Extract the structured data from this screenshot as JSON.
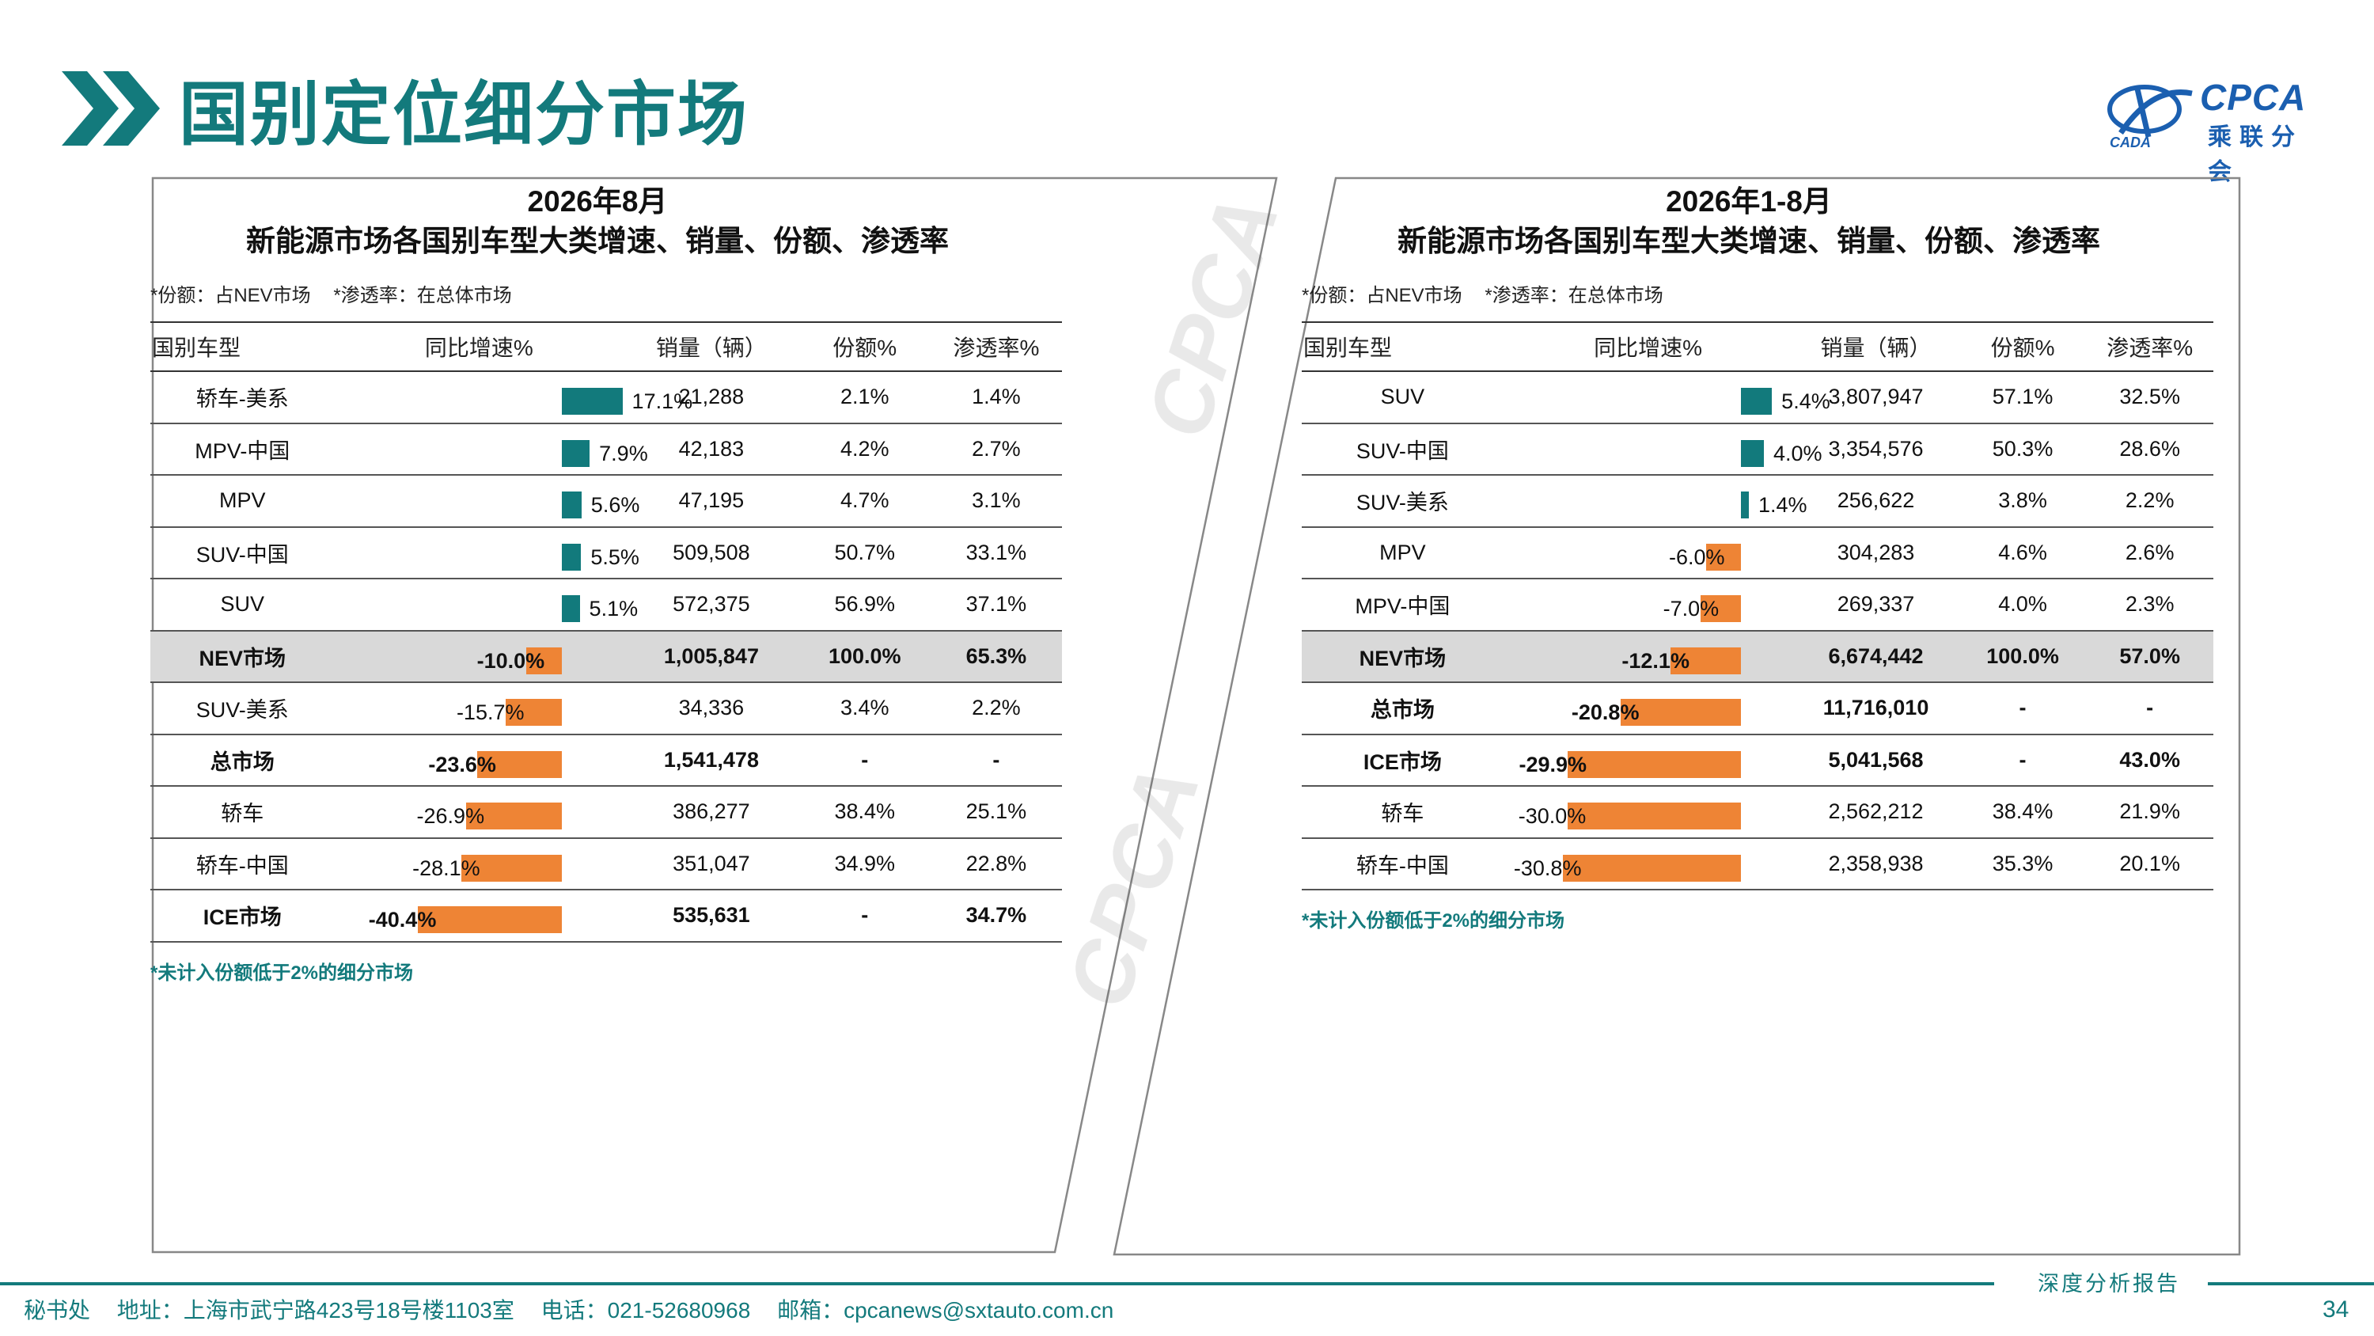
{
  "page": {
    "title": "国别定位细分市场",
    "page_number": "34",
    "report_label": "深度分析报告"
  },
  "logo": {
    "brand": "CPCA",
    "subtitle": "乘联分会",
    "mark_text": "CADA"
  },
  "footer": {
    "secretariat": "秘书处",
    "address": "地址：上海市武宁路423号18号楼1103室",
    "phone": "电话：021-52680968",
    "email": "邮箱：cpcanews@sxtauto.com.cn"
  },
  "columns": {
    "name": "国别车型",
    "growth": "同比增速%",
    "sales": "销量（辆）",
    "share": "份额%",
    "penetration": "渗透率%"
  },
  "colors": {
    "teal": "#137a7c",
    "positive_bar": "#127a7c",
    "negative_bar": "#ee8435",
    "highlight_row": "#d9d9d9"
  },
  "chart_data": [
    {
      "type": "table",
      "title_line1": "2026年8月",
      "title_line2": "新能源市场各国别车型大类增速、销量、份额、渗透率",
      "note_share": "*份额：占NEV市场",
      "note_penetration": "*渗透率：在总体市场",
      "footnote": "*未计入份额低于2%的细分市场",
      "rows": [
        {
          "name": "轿车-美系",
          "growth": 17.1,
          "growth_label": "17.1%",
          "sales": "21,288",
          "share": "2.1%",
          "penetration": "1.4%",
          "style": "normal"
        },
        {
          "name": "MPV-中国",
          "growth": 7.9,
          "growth_label": "7.9%",
          "sales": "42,183",
          "share": "4.2%",
          "penetration": "2.7%",
          "style": "normal"
        },
        {
          "name": "MPV",
          "growth": 5.6,
          "growth_label": "5.6%",
          "sales": "47,195",
          "share": "4.7%",
          "penetration": "3.1%",
          "style": "normal"
        },
        {
          "name": "SUV-中国",
          "growth": 5.5,
          "growth_label": "5.5%",
          "sales": "509,508",
          "share": "50.7%",
          "penetration": "33.1%",
          "style": "normal"
        },
        {
          "name": "SUV",
          "growth": 5.1,
          "growth_label": "5.1%",
          "sales": "572,375",
          "share": "56.9%",
          "penetration": "37.1%",
          "style": "normal"
        },
        {
          "name": "NEV市场",
          "growth": -10.0,
          "growth_label": "-10.0%",
          "sales": "1,005,847",
          "share": "100.0%",
          "penetration": "65.3%",
          "style": "highlight"
        },
        {
          "name": "SUV-美系",
          "growth": -15.7,
          "growth_label": "-15.7%",
          "sales": "34,336",
          "share": "3.4%",
          "penetration": "2.2%",
          "style": "normal"
        },
        {
          "name": "总市场",
          "growth": -23.6,
          "growth_label": "-23.6%",
          "sales": "1,541,478",
          "share": "-",
          "penetration": "-",
          "style": "bold"
        },
        {
          "name": "轿车",
          "growth": -26.9,
          "growth_label": "-26.9%",
          "sales": "386,277",
          "share": "38.4%",
          "penetration": "25.1%",
          "style": "normal"
        },
        {
          "name": "轿车-中国",
          "growth": -28.1,
          "growth_label": "-28.1%",
          "sales": "351,047",
          "share": "34.9%",
          "penetration": "22.8%",
          "style": "normal"
        },
        {
          "name": "ICE市场",
          "growth": -40.4,
          "growth_label": "-40.4%",
          "sales": "535,631",
          "share": "-",
          "penetration": "34.7%",
          "style": "bold"
        }
      ]
    },
    {
      "type": "table",
      "title_line1": "2026年1-8月",
      "title_line2": "新能源市场各国别车型大类增速、销量、份额、渗透率",
      "note_share": "*份额：占NEV市场",
      "note_penetration": "*渗透率：在总体市场",
      "footnote": "*未计入份额低于2%的细分市场",
      "rows": [
        {
          "name": "SUV",
          "growth": 5.4,
          "growth_label": "5.4%",
          "sales": "3,807,947",
          "share": "57.1%",
          "penetration": "32.5%",
          "style": "normal"
        },
        {
          "name": "SUV-中国",
          "growth": 4.0,
          "growth_label": "4.0%",
          "sales": "3,354,576",
          "share": "50.3%",
          "penetration": "28.6%",
          "style": "normal"
        },
        {
          "name": "SUV-美系",
          "growth": 1.4,
          "growth_label": "1.4%",
          "sales": "256,622",
          "share": "3.8%",
          "penetration": "2.2%",
          "style": "normal"
        },
        {
          "name": "MPV",
          "growth": -6.0,
          "growth_label": "-6.0%",
          "sales": "304,283",
          "share": "4.6%",
          "penetration": "2.6%",
          "style": "normal"
        },
        {
          "name": "MPV-中国",
          "growth": -7.0,
          "growth_label": "-7.0%",
          "sales": "269,337",
          "share": "4.0%",
          "penetration": "2.3%",
          "style": "normal"
        },
        {
          "name": "NEV市场",
          "growth": -12.1,
          "growth_label": "-12.1%",
          "sales": "6,674,442",
          "share": "100.0%",
          "penetration": "57.0%",
          "style": "highlight"
        },
        {
          "name": "总市场",
          "growth": -20.8,
          "growth_label": "-20.8%",
          "sales": "11,716,010",
          "share": "-",
          "penetration": "-",
          "style": "bold"
        },
        {
          "name": "ICE市场",
          "growth": -29.9,
          "growth_label": "-29.9%",
          "sales": "5,041,568",
          "share": "-",
          "penetration": "43.0%",
          "style": "bold"
        },
        {
          "name": "轿车",
          "growth": -30.0,
          "growth_label": "-30.0%",
          "sales": "2,562,212",
          "share": "38.4%",
          "penetration": "21.9%",
          "style": "normal"
        },
        {
          "name": "轿车-中国",
          "growth": -30.8,
          "growth_label": "-30.8%",
          "sales": "2,358,938",
          "share": "35.3%",
          "penetration": "20.1%",
          "style": "normal"
        }
      ]
    }
  ]
}
